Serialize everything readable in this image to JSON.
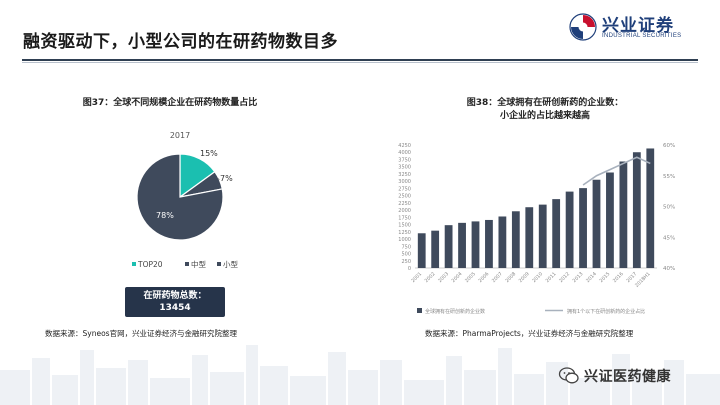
{
  "header": {
    "title": "融资驱动下，小型公司的在研药物数目多",
    "logo_name": "兴业证券",
    "logo_sub": "INDUSTRIAL SECURITIES"
  },
  "left_panel": {
    "caption": "图37：全球不同规模企业在研药物数量占比",
    "summary_label": "在研药物总数：",
    "summary_value": "13454",
    "source": "数据来源：Syneos官网，兴业证券经济与金融研究院整理"
  },
  "right_panel": {
    "caption_line1": "图38：全球拥有在研创新药的企业数：",
    "caption_line2": "小企业的占比越来越高",
    "source": "数据来源：PharmaProjects，兴业证券经济与金融研究院整理"
  },
  "watermark": {
    "text": "兴证医药健康"
  },
  "colors": {
    "navy": "#26344a",
    "slate": "#3f4a5c",
    "teal": "#1bbfb0",
    "bar": "#3f4a5c",
    "line": "#a8b1bd"
  },
  "chart_data": [
    {
      "type": "pie",
      "title": "2017",
      "categories": [
        "TOP20",
        "中型",
        "小型"
      ],
      "values": [
        15,
        7,
        78
      ],
      "value_labels": [
        "15%",
        "7%",
        "78%"
      ],
      "colors": [
        "#1bbfb0",
        "#3f4a5c",
        "#3f4a5c"
      ],
      "legend_position": "bottom"
    },
    {
      "type": "bar",
      "categories": [
        "2001",
        "2002",
        "2003",
        "2004",
        "2005",
        "2006",
        "2007",
        "2008",
        "2009",
        "2010",
        "2011",
        "2012",
        "2013",
        "2014",
        "2015",
        "2016",
        "2017",
        "2018H1"
      ],
      "series": [
        {
          "name": "全球拥有在研创新药企业数",
          "type": "bar",
          "axis": "left",
          "values": [
            1200,
            1290,
            1480,
            1560,
            1610,
            1660,
            1780,
            1960,
            2100,
            2190,
            2380,
            2640,
            2760,
            3050,
            3300,
            3680,
            4000,
            4130
          ]
        },
        {
          "name": "拥有1个以下在研创新药的企业占比",
          "type": "line",
          "axis": "right",
          "values": [
            null,
            null,
            null,
            null,
            null,
            null,
            null,
            null,
            null,
            null,
            null,
            null,
            53.5,
            55,
            56,
            57,
            58,
            57
          ]
        }
      ],
      "yticks_left": [
        0,
        250,
        500,
        750,
        1000,
        1250,
        1500,
        1750,
        2000,
        2250,
        2500,
        2750,
        3000,
        3250,
        3500,
        3750,
        4000,
        4250
      ],
      "ylim_left": [
        0,
        4250
      ],
      "yticks_right": [
        "40%",
        "45%",
        "50%",
        "55%",
        "60%"
      ],
      "ylim_right": [
        40,
        60
      ],
      "legend_position": "bottom",
      "grid": false
    }
  ]
}
